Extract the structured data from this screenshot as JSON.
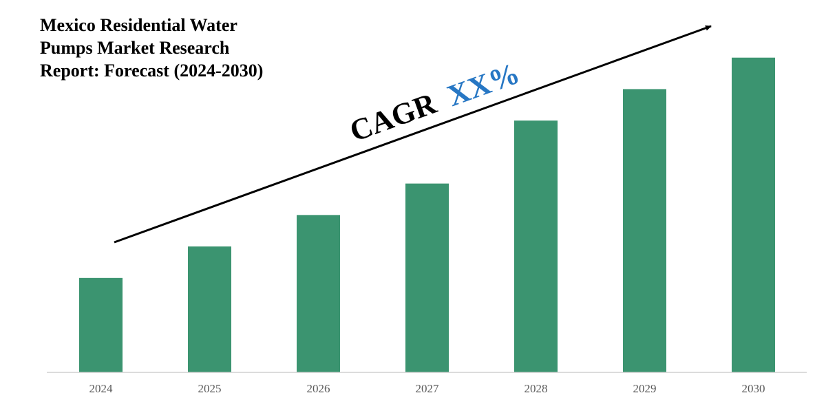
{
  "title_lines": [
    "Mexico Residential Water",
    "Pumps Market Research",
    "Report: Forecast (2024-2030)"
  ],
  "annotation": {
    "prefix": "CAGR",
    "value": "XX%",
    "prefix_color": "#000000",
    "value_color": "#2777c4"
  },
  "colors": {
    "bar": "#3b9470",
    "axis": "#d0d0d0",
    "arrow": "#000000"
  },
  "chart_data": {
    "type": "bar",
    "categories": [
      "2024",
      "2025",
      "2026",
      "2027",
      "2028",
      "2029",
      "2030"
    ],
    "values": [
      30,
      40,
      50,
      60,
      80,
      90,
      100
    ],
    "title": "Mexico Residential Water Pumps Market Research Report: Forecast (2024-2030)",
    "xlabel": "",
    "ylabel": "",
    "ylim": [
      0,
      110
    ],
    "grid": false,
    "legend": "none"
  }
}
